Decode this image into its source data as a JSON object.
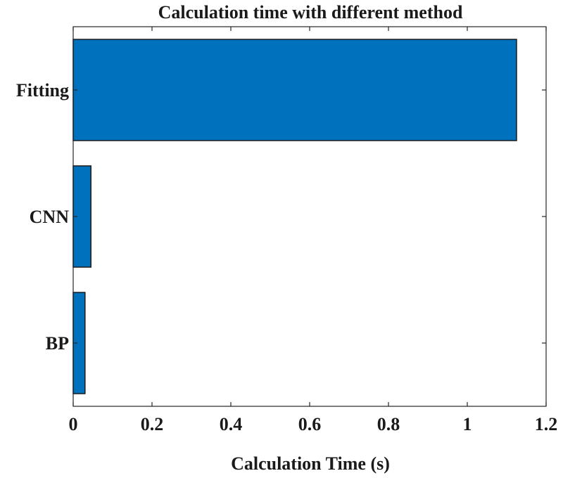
{
  "chart_data": {
    "type": "bar",
    "orientation": "horizontal",
    "title": "Calculation time with different method",
    "xlabel": "Calculation Time (s)",
    "ylabel": "",
    "categories": [
      "BP",
      "CNN",
      "Fitting"
    ],
    "values": [
      0.03,
      0.045,
      1.125
    ],
    "xlim": [
      0,
      1.2
    ],
    "xticks": [
      0,
      0.2,
      0.4,
      0.6,
      0.8,
      1,
      1.2
    ],
    "xtick_labels": [
      "0",
      "0.2",
      "0.4",
      "0.6",
      "0.8",
      "1",
      "1.2"
    ],
    "bar_color": "#0072BD",
    "edge_color": "#1a1a1a",
    "grid": false,
    "legend": "none"
  }
}
